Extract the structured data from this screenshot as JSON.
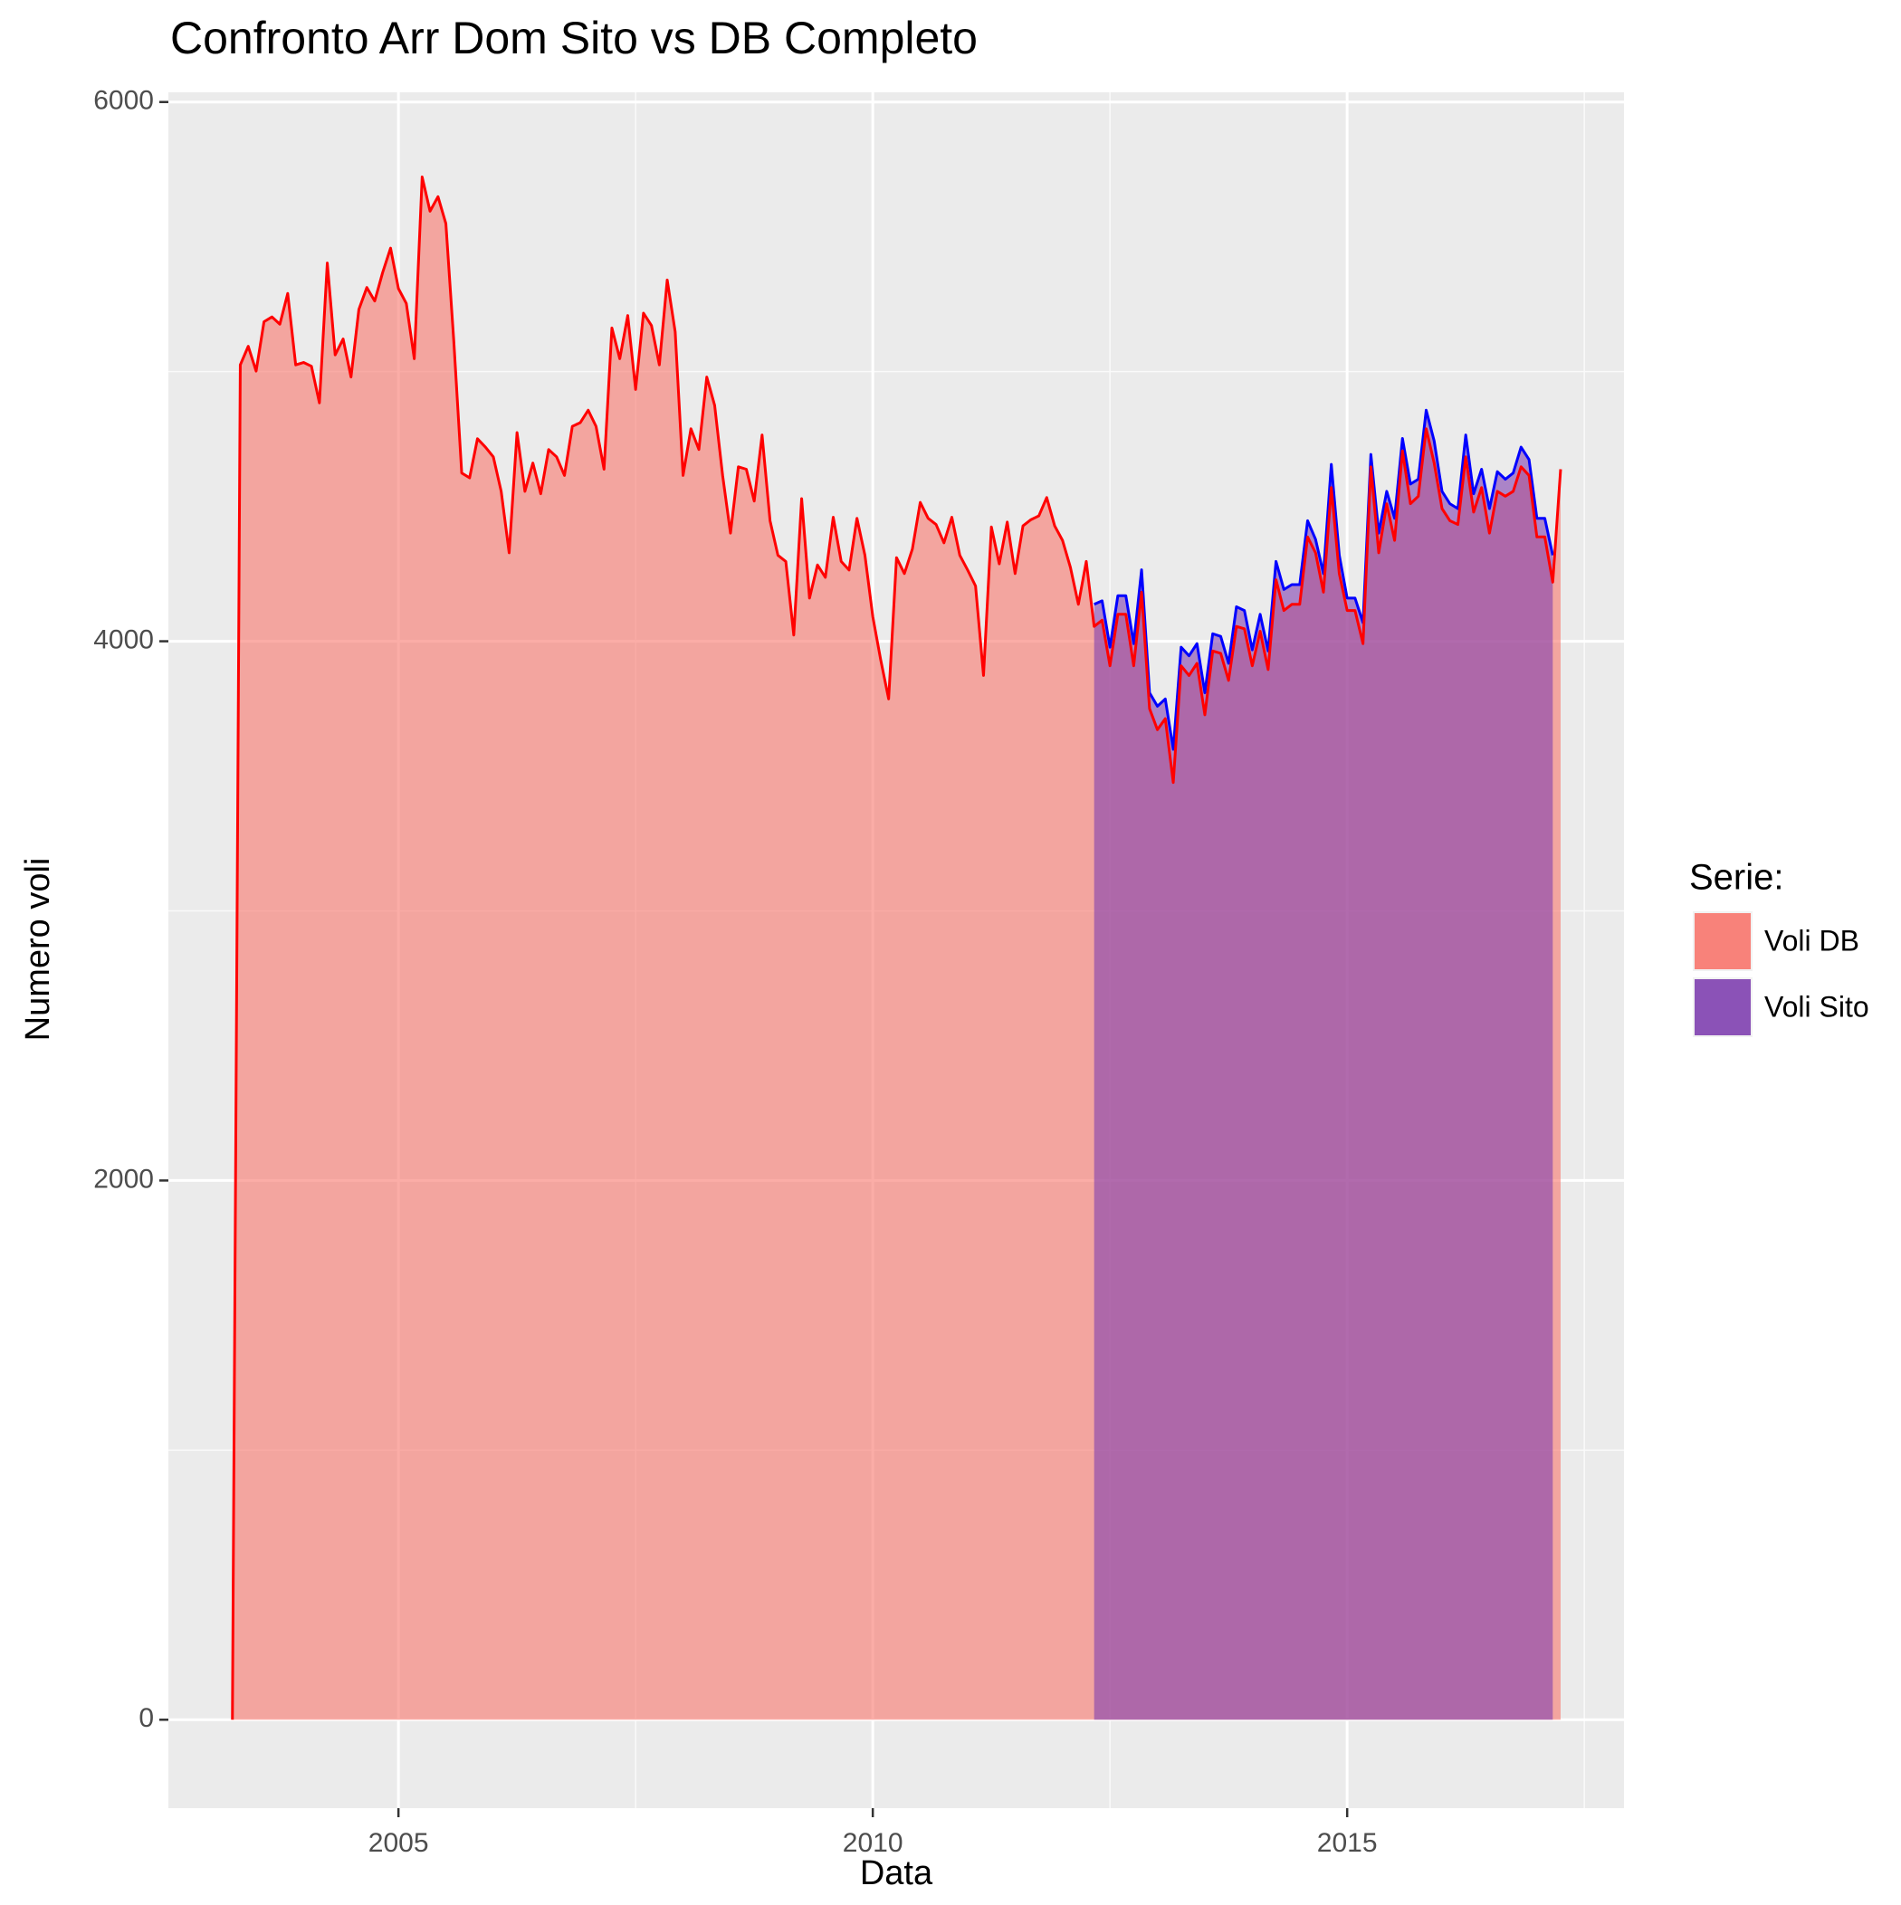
{
  "chart_data": {
    "type": "area",
    "title": "Confronto Arr Dom Sito vs DB Completo",
    "x_label": "Data",
    "y_label": "Numero voli",
    "legend_title": "Serie:",
    "legend_position": "right",
    "grid": true,
    "xlim": [
      2002.575,
      2017.918
    ],
    "ylim": [
      -328,
      6036
    ],
    "xticks": [
      2005,
      2010,
      2015
    ],
    "yticks": [
      0,
      2000,
      4000,
      6000
    ],
    "x_minor_grid": [
      2007.5,
      2012.5,
      2017.5
    ],
    "y_minor_grid": [
      1000,
      3000,
      5000
    ],
    "series": [
      {
        "name": "Voli DB",
        "color": "#ff0000",
        "fill": "#f8766d",
        "x": [
          2003.25,
          2003.333,
          2003.417,
          2003.5,
          2003.583,
          2003.667,
          2003.75,
          2003.833,
          2003.917,
          2004,
          2004.083,
          2004.167,
          2004.25,
          2004.333,
          2004.417,
          2004.5,
          2004.583,
          2004.667,
          2004.75,
          2004.833,
          2004.917,
          2005,
          2005.083,
          2005.167,
          2005.25,
          2005.333,
          2005.417,
          2005.5,
          2005.583,
          2005.667,
          2005.75,
          2005.833,
          2005.917,
          2006,
          2006.083,
          2006.167,
          2006.25,
          2006.333,
          2006.417,
          2006.5,
          2006.583,
          2006.667,
          2006.75,
          2006.833,
          2006.917,
          2007,
          2007.083,
          2007.167,
          2007.25,
          2007.333,
          2007.417,
          2007.5,
          2007.583,
          2007.667,
          2007.75,
          2007.833,
          2007.917,
          2008,
          2008.083,
          2008.167,
          2008.25,
          2008.333,
          2008.417,
          2008.5,
          2008.583,
          2008.667,
          2008.75,
          2008.833,
          2008.917,
          2009,
          2009.083,
          2009.167,
          2009.25,
          2009.333,
          2009.417,
          2009.5,
          2009.583,
          2009.667,
          2009.75,
          2009.833,
          2009.917,
          2010,
          2010.083,
          2010.167,
          2010.25,
          2010.333,
          2010.417,
          2010.5,
          2010.583,
          2010.667,
          2010.75,
          2010.833,
          2010.917,
          2011,
          2011.083,
          2011.167,
          2011.25,
          2011.333,
          2011.417,
          2011.5,
          2011.583,
          2011.667,
          2011.75,
          2011.833,
          2011.917,
          2012,
          2012.083,
          2012.167,
          2012.25,
          2012.333,
          2012.417,
          2012.5,
          2012.583,
          2012.667,
          2012.75,
          2012.833,
          2012.917,
          2013,
          2013.083,
          2013.167,
          2013.25,
          2013.333,
          2013.417,
          2013.5,
          2013.583,
          2013.667,
          2013.75,
          2013.833,
          2013.917,
          2014,
          2014.083,
          2014.167,
          2014.25,
          2014.333,
          2014.417,
          2014.5,
          2014.583,
          2014.667,
          2014.75,
          2014.833,
          2014.917,
          2015,
          2015.083,
          2015.167,
          2015.25,
          2015.333,
          2015.417,
          2015.5,
          2015.583,
          2015.667,
          2015.75,
          2015.833,
          2015.917,
          2016,
          2016.083,
          2016.167,
          2016.25,
          2016.333,
          2016.417,
          2016.5,
          2016.583,
          2016.667,
          2016.75,
          2016.833,
          2016.917,
          2017,
          2017.083,
          2017.167,
          2017.25
        ],
        "values": [
          0,
          5025,
          5094,
          5002,
          5185,
          5203,
          5176,
          5290,
          5025,
          5034,
          5020,
          4884,
          5403,
          5062,
          5121,
          4980,
          5231,
          5312,
          5262,
          5367,
          5458,
          5308,
          5253,
          5048,
          5722,
          5595,
          5649,
          5549,
          5116,
          4624,
          4606,
          4751,
          4720,
          4684,
          4556,
          4328,
          4774,
          4556,
          4661,
          4547,
          4711,
          4684,
          4615,
          4797,
          4811,
          4857,
          4797,
          4638,
          5162,
          5048,
          5208,
          4934,
          5217,
          5171,
          5025,
          5340,
          5148,
          4615,
          4788,
          4711,
          4980,
          4875,
          4615,
          4401,
          4647,
          4638,
          4520,
          4765,
          4447,
          4319,
          4296,
          4023,
          4529,
          4160,
          4283,
          4237,
          4460,
          4296,
          4264,
          4456,
          4319,
          4091,
          3932,
          3786,
          4310,
          4251,
          4342,
          4515,
          4456,
          4433,
          4365,
          4460,
          4319,
          4264,
          4205,
          3873,
          4424,
          4287,
          4442,
          4251,
          4428,
          4451,
          4465,
          4533,
          4428,
          4374,
          4274,
          4137,
          4296,
          4055,
          4078,
          3909,
          4100,
          4100,
          3909,
          4182,
          3750,
          3672,
          3713,
          3476,
          3909,
          3873,
          3918,
          3727,
          3964,
          3955,
          3855,
          4055,
          4046,
          3909,
          4037,
          3895,
          4228,
          4114,
          4137,
          4137,
          4387,
          4328,
          4182,
          4570,
          4251,
          4114,
          4114,
          3991,
          4647,
          4328,
          4510,
          4374,
          4706,
          4510,
          4538,
          4788,
          4661,
          4492,
          4447,
          4433,
          4684,
          4479,
          4570,
          4401,
          4556,
          4538,
          4556,
          4647,
          4615,
          4387,
          4387,
          4219,
          4638
        ]
      },
      {
        "name": "Voli Sito",
        "color": "#0000ff",
        "fill": "#8040b0",
        "x": [
          2012.333,
          2012.417,
          2012.5,
          2012.583,
          2012.667,
          2012.75,
          2012.833,
          2012.917,
          2013,
          2013.083,
          2013.167,
          2013.25,
          2013.333,
          2013.417,
          2013.5,
          2013.583,
          2013.667,
          2013.75,
          2013.833,
          2013.917,
          2014,
          2014.083,
          2014.167,
          2014.25,
          2014.333,
          2014.417,
          2014.5,
          2014.583,
          2014.667,
          2014.75,
          2014.833,
          2014.917,
          2015,
          2015.083,
          2015.167,
          2015.25,
          2015.333,
          2015.417,
          2015.5,
          2015.583,
          2015.667,
          2015.75,
          2015.833,
          2015.917,
          2016,
          2016.083,
          2016.167,
          2016.25,
          2016.333,
          2016.417,
          2016.5,
          2016.583,
          2016.667,
          2016.75,
          2016.833,
          2016.917,
          2017,
          2017.083,
          2017.167
        ],
        "values": [
          4137,
          4150,
          3978,
          4169,
          4169,
          3991,
          4265,
          3809,
          3759,
          3786,
          3599,
          3978,
          3946,
          3991,
          3809,
          4028,
          4018,
          3918,
          4128,
          4114,
          3968,
          4100,
          3964,
          4296,
          4192,
          4210,
          4210,
          4447,
          4378,
          4251,
          4656,
          4319,
          4160,
          4160,
          4069,
          4693,
          4401,
          4556,
          4456,
          4752,
          4583,
          4601,
          4857,
          4743,
          4556,
          4510,
          4492,
          4765,
          4547,
          4638,
          4492,
          4629,
          4601,
          4624,
          4720,
          4674,
          4456,
          4456,
          4319
        ]
      }
    ]
  }
}
